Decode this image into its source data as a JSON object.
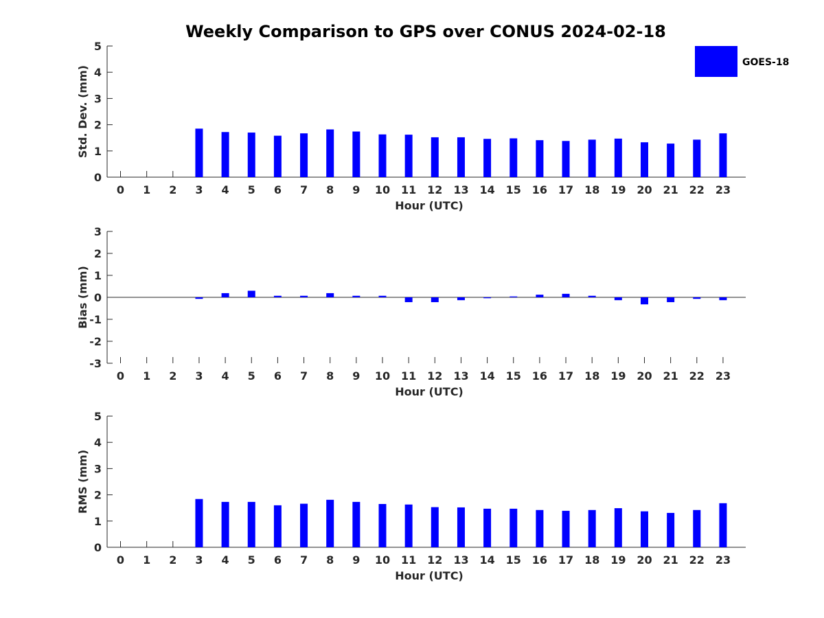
{
  "title": "Weekly Comparison to GPS over CONUS 2024-02-18",
  "legend": {
    "label": "GOES-18",
    "color": "#0000ff",
    "placement": "top-right"
  },
  "chart_data": [
    {
      "type": "bar",
      "name": "std-dev",
      "xlabel": "Hour (UTC)",
      "ylabel": "Std. Dev. (mm)",
      "ylim": [
        0,
        5
      ],
      "yticks": [
        0,
        1,
        2,
        3,
        4,
        5
      ],
      "categories": [
        0,
        1,
        2,
        3,
        4,
        5,
        6,
        7,
        8,
        9,
        10,
        11,
        12,
        13,
        14,
        15,
        16,
        17,
        18,
        19,
        20,
        21,
        22,
        23
      ],
      "series": [
        {
          "name": "GOES-18",
          "values": [
            null,
            null,
            null,
            1.85,
            1.72,
            1.7,
            1.58,
            1.67,
            1.82,
            1.74,
            1.63,
            1.62,
            1.52,
            1.52,
            1.46,
            1.48,
            1.41,
            1.38,
            1.43,
            1.47,
            1.33,
            1.28,
            1.43,
            1.67
          ]
        }
      ]
    },
    {
      "type": "bar",
      "name": "bias",
      "xlabel": "Hour (UTC)",
      "ylabel": "Bias (mm)",
      "ylim": [
        -3,
        3
      ],
      "yticks": [
        -3,
        -2,
        -1,
        0,
        1,
        2,
        3
      ],
      "categories": [
        0,
        1,
        2,
        3,
        4,
        5,
        6,
        7,
        8,
        9,
        10,
        11,
        12,
        13,
        14,
        15,
        16,
        17,
        18,
        19,
        20,
        21,
        22,
        23
      ],
      "series": [
        {
          "name": "GOES-18",
          "values": [
            null,
            null,
            null,
            -0.07,
            0.19,
            0.3,
            0.07,
            0.07,
            0.19,
            0.07,
            0.07,
            -0.22,
            -0.22,
            -0.13,
            -0.04,
            0.04,
            0.12,
            0.16,
            0.07,
            -0.13,
            -0.32,
            -0.22,
            -0.07,
            -0.13
          ]
        }
      ]
    },
    {
      "type": "bar",
      "name": "rms",
      "xlabel": "Hour (UTC)",
      "ylabel": "RMS (mm)",
      "ylim": [
        0,
        5
      ],
      "yticks": [
        0,
        1,
        2,
        3,
        4,
        5
      ],
      "categories": [
        0,
        1,
        2,
        3,
        4,
        5,
        6,
        7,
        8,
        9,
        10,
        11,
        12,
        13,
        14,
        15,
        16,
        17,
        18,
        19,
        20,
        21,
        22,
        23
      ],
      "series": [
        {
          "name": "GOES-18",
          "values": [
            null,
            null,
            null,
            1.84,
            1.73,
            1.73,
            1.6,
            1.66,
            1.81,
            1.73,
            1.65,
            1.63,
            1.53,
            1.52,
            1.47,
            1.47,
            1.42,
            1.39,
            1.42,
            1.49,
            1.37,
            1.31,
            1.42,
            1.68
          ]
        }
      ]
    }
  ]
}
